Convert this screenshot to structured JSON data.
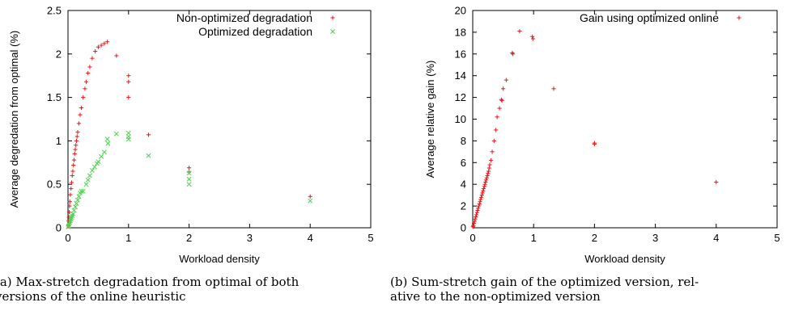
{
  "captions": {
    "a_line1": "(a) Max-stretch degradation from optimal of both",
    "a_line2": "versions of the online heuristic",
    "b_line1": "(b) Sum-stretch gain of the optimized version, rel-",
    "b_line2": "ative to the non-optimized version"
  },
  "chart_data": [
    {
      "type": "scatter",
      "xlabel": "Workload density",
      "ylabel": "Average degredation from optimal (%)",
      "xlim": [
        0,
        5
      ],
      "ylim": [
        0,
        2.5
      ],
      "xticks": [
        "0",
        "1",
        "2",
        "3",
        "4",
        "5"
      ],
      "yticks": [
        "0",
        "0.5",
        "1",
        "1.5",
        "2",
        "2.5"
      ],
      "grid": false,
      "legend_position": "top-right",
      "series": [
        {
          "name": "Non-optimized degradation",
          "color": "#e41a1c",
          "marker": "plus",
          "points": [
            [
              0.005,
              0.02
            ],
            [
              0.01,
              0.08
            ],
            [
              0.015,
              0.12
            ],
            [
              0.02,
              0.18
            ],
            [
              0.025,
              0.25
            ],
            [
              0.03,
              0.3
            ],
            [
              0.04,
              0.38
            ],
            [
              0.05,
              0.45
            ],
            [
              0.06,
              0.52
            ],
            [
              0.07,
              0.6
            ],
            [
              0.08,
              0.65
            ],
            [
              0.09,
              0.72
            ],
            [
              0.1,
              0.78
            ],
            [
              0.11,
              0.85
            ],
            [
              0.12,
              0.9
            ],
            [
              0.13,
              0.95
            ],
            [
              0.14,
              1.0
            ],
            [
              0.15,
              1.05
            ],
            [
              0.16,
              1.1
            ],
            [
              0.18,
              1.2
            ],
            [
              0.2,
              1.3
            ],
            [
              0.22,
              1.38
            ],
            [
              0.25,
              1.5
            ],
            [
              0.28,
              1.6
            ],
            [
              0.3,
              1.68
            ],
            [
              0.33,
              1.78
            ],
            [
              0.36,
              1.85
            ],
            [
              0.4,
              1.95
            ],
            [
              0.45,
              2.03
            ],
            [
              0.5,
              2.08
            ],
            [
              0.55,
              2.1
            ],
            [
              0.6,
              2.12
            ],
            [
              0.65,
              2.14
            ],
            [
              0.8,
              1.98
            ],
            [
              1.0,
              1.75
            ],
            [
              1.0,
              1.68
            ],
            [
              1.0,
              1.5
            ],
            [
              1.33,
              1.07
            ],
            [
              2.0,
              0.69
            ],
            [
              2.0,
              0.64
            ],
            [
              4.0,
              0.36
            ]
          ]
        },
        {
          "name": "Optimized degradation",
          "color": "#4dd04d",
          "marker": "cross",
          "points": [
            [
              0.005,
              0.01
            ],
            [
              0.01,
              0.02
            ],
            [
              0.02,
              0.04
            ],
            [
              0.03,
              0.06
            ],
            [
              0.04,
              0.08
            ],
            [
              0.05,
              0.1
            ],
            [
              0.06,
              0.12
            ],
            [
              0.07,
              0.14
            ],
            [
              0.08,
              0.16
            ],
            [
              0.1,
              0.2
            ],
            [
              0.12,
              0.24
            ],
            [
              0.14,
              0.28
            ],
            [
              0.16,
              0.32
            ],
            [
              0.18,
              0.36
            ],
            [
              0.2,
              0.4
            ],
            [
              0.22,
              0.42
            ],
            [
              0.25,
              0.42
            ],
            [
              0.3,
              0.5
            ],
            [
              0.33,
              0.55
            ],
            [
              0.36,
              0.6
            ],
            [
              0.4,
              0.66
            ],
            [
              0.44,
              0.7
            ],
            [
              0.48,
              0.74
            ],
            [
              0.5,
              0.76
            ],
            [
              0.55,
              0.82
            ],
            [
              0.6,
              0.87
            ],
            [
              0.65,
              1.02
            ],
            [
              0.66,
              0.97
            ],
            [
              0.8,
              1.08
            ],
            [
              1.0,
              1.09
            ],
            [
              1.0,
              1.05
            ],
            [
              1.0,
              1.02
            ],
            [
              1.33,
              0.83
            ],
            [
              2.0,
              0.63
            ],
            [
              2.0,
              0.56
            ],
            [
              2.0,
              0.5
            ],
            [
              4.0,
              0.31
            ]
          ]
        }
      ]
    },
    {
      "type": "scatter",
      "xlabel": "Workload density",
      "ylabel": "Average relative gain (%)",
      "xlim": [
        0,
        5
      ],
      "ylim": [
        0,
        20
      ],
      "xticks": [
        "0",
        "1",
        "2",
        "3",
        "4",
        "5"
      ],
      "yticks": [
        "0",
        "2",
        "4",
        "6",
        "8",
        "10",
        "12",
        "14",
        "16",
        "18",
        "20"
      ],
      "grid": false,
      "legend_position": "top-right",
      "series": [
        {
          "name": "Gain using optimized online",
          "color": "#e41a1c",
          "marker": "plus",
          "points": [
            [
              0.005,
              0.1
            ],
            [
              0.01,
              0.2
            ],
            [
              0.02,
              0.4
            ],
            [
              0.03,
              0.6
            ],
            [
              0.04,
              0.8
            ],
            [
              0.05,
              1.0
            ],
            [
              0.06,
              1.2
            ],
            [
              0.07,
              1.4
            ],
            [
              0.08,
              1.6
            ],
            [
              0.09,
              1.8
            ],
            [
              0.1,
              2.0
            ],
            [
              0.11,
              2.2
            ],
            [
              0.12,
              2.4
            ],
            [
              0.13,
              2.6
            ],
            [
              0.14,
              2.8
            ],
            [
              0.15,
              3.0
            ],
            [
              0.16,
              3.2
            ],
            [
              0.17,
              3.4
            ],
            [
              0.18,
              3.6
            ],
            [
              0.19,
              3.8
            ],
            [
              0.2,
              4.0
            ],
            [
              0.21,
              4.2
            ],
            [
              0.22,
              4.4
            ],
            [
              0.23,
              4.6
            ],
            [
              0.24,
              4.8
            ],
            [
              0.25,
              5.0
            ],
            [
              0.26,
              5.2
            ],
            [
              0.27,
              5.5
            ],
            [
              0.28,
              5.8
            ],
            [
              0.3,
              6.2
            ],
            [
              0.32,
              7.0
            ],
            [
              0.35,
              8.0
            ],
            [
              0.38,
              9.0
            ],
            [
              0.4,
              10.2
            ],
            [
              0.44,
              11.0
            ],
            [
              0.47,
              11.8
            ],
            [
              0.48,
              11.7
            ],
            [
              0.5,
              12.8
            ],
            [
              0.55,
              13.6
            ],
            [
              0.65,
              16.1
            ],
            [
              0.66,
              16.0
            ],
            [
              0.77,
              18.1
            ],
            [
              0.98,
              17.6
            ],
            [
              0.99,
              17.4
            ],
            [
              1.33,
              12.8
            ],
            [
              2.0,
              7.8
            ],
            [
              2.0,
              7.7
            ],
            [
              4.0,
              4.2
            ]
          ]
        }
      ]
    }
  ]
}
